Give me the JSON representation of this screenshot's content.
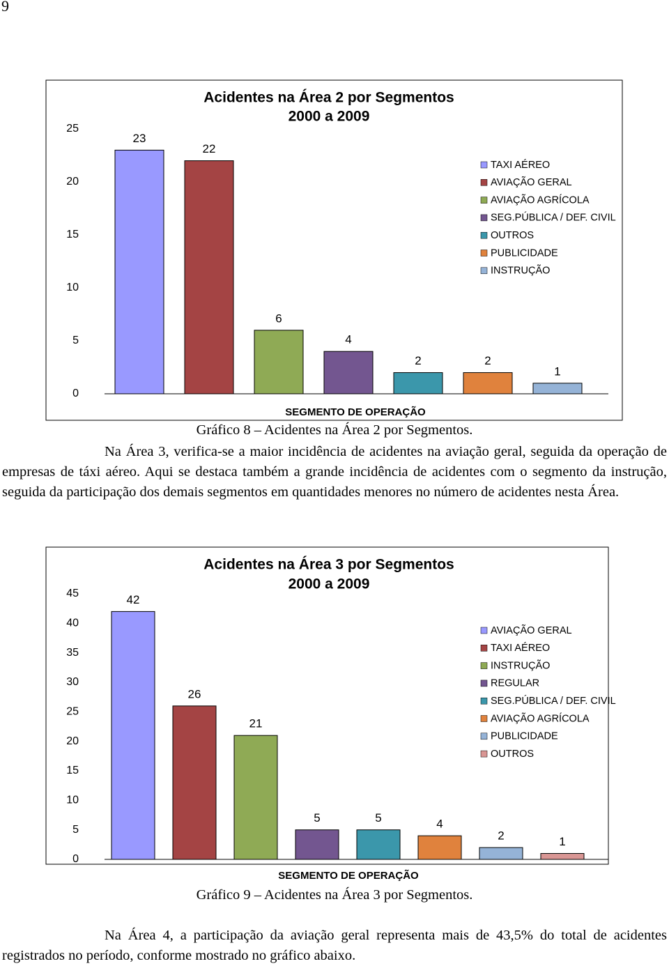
{
  "page_number": "9",
  "chart_data": [
    {
      "type": "bar",
      "title": "Acidentes na Área 2 por Segmentos",
      "subtitle": "2000 a 2009",
      "x_label": "SEGMENTO DE OPERAÇÃO",
      "ylim": [
        0,
        25
      ],
      "yticks": [
        0,
        5,
        10,
        15,
        20,
        25
      ],
      "grid": false,
      "series": [
        {
          "name": "TAXI AÉREO",
          "color": "#9999ff",
          "values": [
            23
          ]
        },
        {
          "name": "AVIAÇÃO GERAL",
          "color": "#a44444",
          "values": [
            22
          ]
        },
        {
          "name": "AVIAÇÃO AGRÍCOLA",
          "color": "#8faa55",
          "values": [
            6
          ]
        },
        {
          "name": "SEG.PÚBLICA / DEF. CIVIL",
          "color": "#735690",
          "values": [
            4
          ]
        },
        {
          "name": "OUTROS",
          "color": "#3b97ab",
          "values": [
            2
          ]
        },
        {
          "name": "PUBLICIDADE",
          "color": "#e0823d",
          "values": [
            2
          ]
        },
        {
          "name": "INSTRUÇÃO",
          "color": "#95b3d7",
          "values": [
            1
          ]
        }
      ]
    },
    {
      "type": "bar",
      "title": "Acidentes na Área 3 por Segmentos",
      "subtitle": "2000 a 2009",
      "x_label": "SEGMENTO DE OPERAÇÃO",
      "ylim": [
        0,
        45
      ],
      "yticks": [
        0,
        5,
        10,
        15,
        20,
        25,
        30,
        35,
        40,
        45
      ],
      "grid": false,
      "series": [
        {
          "name": "AVIAÇÃO GERAL",
          "color": "#9999ff",
          "values": [
            42
          ]
        },
        {
          "name": "TAXI AÉREO",
          "color": "#a44444",
          "values": [
            26
          ]
        },
        {
          "name": "INSTRUÇÃO",
          "color": "#8faa55",
          "values": [
            21
          ]
        },
        {
          "name": "REGULAR",
          "color": "#735690",
          "values": [
            5
          ]
        },
        {
          "name": "SEG.PÚBLICA / DEF. CIVIL",
          "color": "#3b97ab",
          "values": [
            5
          ]
        },
        {
          "name": "AVIAÇÃO AGRÍCOLA",
          "color": "#e0823d",
          "values": [
            4
          ]
        },
        {
          "name": "PUBLICIDADE",
          "color": "#95b3d7",
          "values": [
            2
          ]
        },
        {
          "name": "OUTROS",
          "color": "#d99694",
          "values": [
            1
          ]
        }
      ]
    }
  ],
  "captions": [
    "Gráfico 8 – Acidentes na Área 2 por Segmentos.",
    "Gráfico 9 – Acidentes na Área 3 por Segmentos."
  ],
  "paragraphs": [
    "Na Área 3, verifica-se a maior incidência de acidentes na aviação geral, seguida da operação de empresas de táxi aéreo. Aqui se destaca também a grande incidência de acidentes com o segmento da instrução, seguida da participação dos demais segmentos em quantidades menores no número de acidentes nesta Área.",
    "Na Área 4, a participação da aviação geral representa mais de 43,5% do total de acidentes registrados no período, conforme mostrado no gráfico abaixo."
  ]
}
